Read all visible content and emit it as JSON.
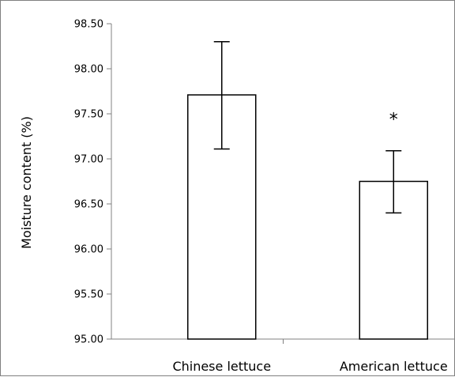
{
  "chart_data": {
    "type": "bar",
    "title": "",
    "xlabel": "",
    "ylabel": "Moisture content (%)",
    "ylim": [
      95.0,
      98.5
    ],
    "yticks": [
      "95.00",
      "95.50",
      "96.00",
      "96.50",
      "97.00",
      "97.50",
      "98.00",
      "98.50"
    ],
    "grid": false,
    "legend": "none",
    "categories": [
      "Chinese lettuce",
      "American lettuce"
    ],
    "values": [
      97.71,
      96.75
    ],
    "error_high": [
      98.3,
      97.09
    ],
    "error_low": [
      97.11,
      96.4
    ],
    "annotations": [
      {
        "category": "American lettuce",
        "text": "*"
      }
    ],
    "colors": {
      "bar_fill": "#ffffff",
      "bar_stroke": "#000000",
      "axis": "#808080"
    }
  }
}
